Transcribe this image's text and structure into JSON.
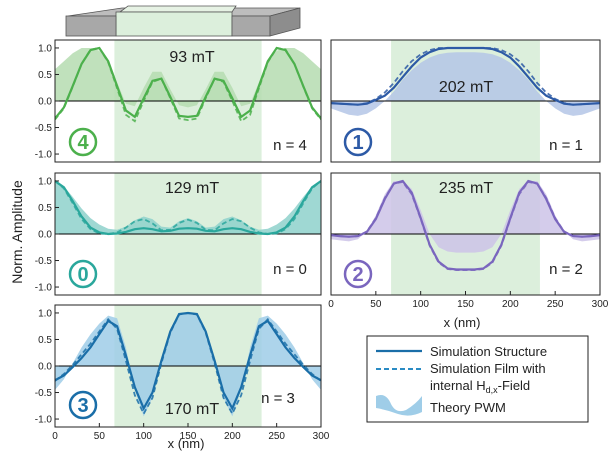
{
  "figure": {
    "ylabel": "Norm. Amplitude",
    "xlabel": "x (nm)",
    "structure_fill": "#dcefdc"
  },
  "legend": {
    "items": [
      {
        "label": "Simulation Structure",
        "style": "solid"
      },
      {
        "label": "Simulation Film with",
        "style": "dashed"
      },
      {
        "label": "internal H",
        "sub": "d,x",
        "suffix": "-Field",
        "style": "none"
      },
      {
        "label": "Theory PWM",
        "style": "wave"
      }
    ]
  },
  "chart_data": [
    {
      "type": "line",
      "mode_badge": "4",
      "field_label": "93 mT",
      "n_label": "n = 4",
      "color": "#4cb04c",
      "fill_color": "#b5dcb0",
      "xlim": [
        0,
        300
      ],
      "ylim": [
        -1.15,
        1.15
      ],
      "yticks": [
        1.0,
        0.5,
        0.0,
        -0.5,
        -1.0
      ],
      "ytick_labels": [
        "1.0",
        "0.5",
        "0.0",
        "-0.5",
        "-1.0"
      ],
      "xticks": [],
      "x": [
        0,
        10,
        20,
        30,
        40,
        50,
        60,
        70,
        80,
        90,
        100,
        110,
        120,
        130,
        140,
        150,
        160,
        170,
        180,
        190,
        200,
        210,
        220,
        230,
        240,
        250,
        260,
        270,
        280,
        290,
        300
      ],
      "series": [
        {
          "name": "Simulation Structure",
          "values": [
            -0.33,
            -0.12,
            0.28,
            0.7,
            0.96,
            1.0,
            0.75,
            0.28,
            -0.18,
            -0.3,
            0.05,
            0.38,
            0.42,
            0.08,
            -0.28,
            -0.3,
            -0.28,
            0.08,
            0.42,
            0.38,
            0.05,
            -0.3,
            -0.18,
            0.28,
            0.75,
            1.0,
            0.96,
            0.7,
            0.28,
            -0.12,
            -0.33
          ]
        },
        {
          "name": "Simulation Film with internal Hd,x-Field",
          "values": [
            -0.35,
            -0.14,
            0.27,
            0.7,
            0.97,
            1.0,
            0.73,
            0.24,
            -0.26,
            -0.38,
            0.0,
            0.36,
            0.42,
            0.05,
            -0.33,
            -0.36,
            -0.33,
            0.05,
            0.42,
            0.36,
            0.0,
            -0.38,
            -0.26,
            0.24,
            0.73,
            1.0,
            0.97,
            0.7,
            0.27,
            -0.14,
            -0.35
          ]
        },
        {
          "name": "Theory PWM",
          "values": [
            0.6,
            0.75,
            0.9,
            1.0,
            1.0,
            0.95,
            0.75,
            0.35,
            -0.05,
            -0.1,
            0.25,
            0.55,
            0.55,
            0.22,
            -0.08,
            -0.12,
            -0.08,
            0.22,
            0.55,
            0.55,
            0.25,
            -0.1,
            -0.05,
            0.35,
            0.75,
            0.95,
            1.0,
            1.0,
            0.9,
            0.75,
            0.6
          ]
        }
      ]
    },
    {
      "type": "line",
      "mode_badge": "0",
      "field_label": "129 mT",
      "n_label": "n = 0",
      "color": "#2aa79c",
      "fill_color": "#8ed1cb",
      "xlim": [
        0,
        300
      ],
      "ylim": [
        -1.15,
        1.15
      ],
      "yticks": [
        1.0,
        0.5,
        0.0,
        -0.5,
        -1.0
      ],
      "ytick_labels": [
        "1.0",
        "0.5",
        "0.0",
        "-0.5",
        "-1.0"
      ],
      "xticks": [],
      "x": [
        0,
        10,
        20,
        30,
        40,
        50,
        60,
        70,
        80,
        90,
        100,
        110,
        120,
        130,
        140,
        150,
        160,
        170,
        180,
        190,
        200,
        210,
        220,
        230,
        240,
        250,
        260,
        270,
        280,
        290,
        300
      ],
      "series": [
        {
          "name": "Simulation Structure",
          "values": [
            1.0,
            0.88,
            0.62,
            0.33,
            0.12,
            0.03,
            0.0,
            0.01,
            0.04,
            0.09,
            0.11,
            0.09,
            0.05,
            0.06,
            0.1,
            0.11,
            0.1,
            0.06,
            0.05,
            0.09,
            0.11,
            0.09,
            0.04,
            0.01,
            0.0,
            0.03,
            0.12,
            0.33,
            0.62,
            0.88,
            1.0
          ]
        },
        {
          "name": "Simulation Film with internal Hd,x-Field",
          "values": [
            1.0,
            0.86,
            0.58,
            0.28,
            0.09,
            0.01,
            0.0,
            0.03,
            0.12,
            0.24,
            0.28,
            0.2,
            0.07,
            0.08,
            0.21,
            0.27,
            0.21,
            0.08,
            0.07,
            0.2,
            0.28,
            0.24,
            0.12,
            0.03,
            0.0,
            0.01,
            0.09,
            0.28,
            0.58,
            0.86,
            1.0
          ]
        },
        {
          "name": "Theory PWM",
          "values": [
            1.0,
            0.9,
            0.7,
            0.48,
            0.3,
            0.18,
            0.1,
            0.08,
            0.14,
            0.26,
            0.33,
            0.28,
            0.14,
            0.12,
            0.24,
            0.3,
            0.24,
            0.12,
            0.14,
            0.28,
            0.33,
            0.26,
            0.14,
            0.08,
            0.1,
            0.18,
            0.3,
            0.48,
            0.7,
            0.9,
            1.0
          ]
        }
      ]
    },
    {
      "type": "line",
      "mode_badge": "3",
      "field_label": "170 mT",
      "n_label": "n = 3",
      "color": "#1a6ea8",
      "fill_color": "#9fcde8",
      "xlim": [
        0,
        300
      ],
      "ylim": [
        -1.15,
        1.15
      ],
      "yticks": [
        1.0,
        0.5,
        0.0,
        -0.5,
        -1.0
      ],
      "ytick_labels": [
        "1.0",
        "0.5",
        "0.0",
        "-0.5",
        "-1.0"
      ],
      "xticks": [
        0,
        50,
        100,
        150,
        200,
        250,
        300
      ],
      "x": [
        0,
        10,
        20,
        30,
        40,
        50,
        60,
        70,
        80,
        90,
        100,
        110,
        120,
        130,
        140,
        150,
        160,
        170,
        180,
        190,
        200,
        210,
        220,
        230,
        240,
        250,
        260,
        270,
        280,
        290,
        300
      ],
      "series": [
        {
          "name": "Simulation Structure",
          "values": [
            -0.27,
            -0.18,
            -0.02,
            0.15,
            0.35,
            0.6,
            0.85,
            0.75,
            0.2,
            -0.4,
            -0.8,
            -0.5,
            0.1,
            0.65,
            0.98,
            1.0,
            0.98,
            0.65,
            0.1,
            -0.5,
            -0.8,
            -0.4,
            0.2,
            0.75,
            0.85,
            0.6,
            0.35,
            0.15,
            -0.02,
            -0.18,
            -0.27
          ]
        },
        {
          "name": "Simulation Film with internal Hd,x-Field",
          "values": [
            -0.28,
            -0.15,
            0.02,
            0.22,
            0.42,
            0.65,
            0.88,
            0.7,
            0.1,
            -0.55,
            -0.9,
            -0.6,
            0.05,
            0.63,
            0.97,
            1.0,
            0.97,
            0.63,
            0.05,
            -0.6,
            -0.9,
            -0.55,
            0.1,
            0.7,
            0.88,
            0.65,
            0.42,
            0.22,
            0.02,
            -0.15,
            -0.28
          ]
        },
        {
          "name": "Theory PWM",
          "values": [
            -0.45,
            -0.25,
            0.05,
            0.35,
            0.6,
            0.8,
            0.95,
            0.9,
            0.35,
            -0.45,
            -0.95,
            -0.6,
            0.15,
            0.7,
            1.0,
            1.0,
            1.0,
            0.7,
            0.15,
            -0.6,
            -0.95,
            -0.45,
            0.35,
            0.9,
            0.95,
            0.8,
            0.6,
            0.35,
            0.05,
            -0.25,
            -0.45
          ]
        }
      ]
    },
    {
      "type": "line",
      "mode_badge": "1",
      "field_label": "202 mT",
      "n_label": "n = 1",
      "color": "#2d5aa6",
      "fill_color": "#b4c5e6",
      "xlim": [
        0,
        300
      ],
      "ylim": [
        -1.15,
        1.15
      ],
      "yticks": [],
      "ytick_labels": [],
      "xticks": [],
      "x": [
        0,
        10,
        20,
        30,
        40,
        50,
        60,
        70,
        80,
        90,
        100,
        110,
        120,
        130,
        140,
        150,
        160,
        170,
        180,
        190,
        200,
        210,
        220,
        230,
        240,
        250,
        260,
        270,
        280,
        290,
        300
      ],
      "series": [
        {
          "name": "Simulation Structure",
          "values": [
            -0.04,
            -0.05,
            -0.06,
            -0.07,
            -0.05,
            0.02,
            0.1,
            0.25,
            0.45,
            0.65,
            0.82,
            0.92,
            0.98,
            1.0,
            1.0,
            1.0,
            1.0,
            1.0,
            0.98,
            0.92,
            0.82,
            0.65,
            0.45,
            0.25,
            0.1,
            0.02,
            -0.05,
            -0.07,
            -0.06,
            -0.05,
            -0.04
          ]
        },
        {
          "name": "Simulation Film with internal Hd,x-Field",
          "values": [
            -0.04,
            -0.05,
            -0.06,
            -0.07,
            -0.04,
            0.04,
            0.16,
            0.34,
            0.56,
            0.75,
            0.88,
            0.96,
            1.0,
            1.0,
            1.0,
            1.0,
            1.0,
            1.0,
            1.0,
            0.96,
            0.88,
            0.75,
            0.56,
            0.34,
            0.16,
            0.04,
            -0.04,
            -0.07,
            -0.06,
            -0.05,
            -0.04
          ]
        },
        {
          "name": "Theory PWM",
          "values": [
            -0.14,
            -0.2,
            -0.26,
            -0.28,
            -0.24,
            -0.14,
            0.0,
            0.18,
            0.4,
            0.58,
            0.72,
            0.82,
            0.88,
            0.91,
            0.92,
            0.92,
            0.92,
            0.91,
            0.88,
            0.82,
            0.72,
            0.58,
            0.4,
            0.18,
            0.0,
            -0.14,
            -0.24,
            -0.28,
            -0.26,
            -0.2,
            -0.14
          ]
        }
      ]
    },
    {
      "type": "line",
      "mode_badge": "2",
      "field_label": "235 mT",
      "n_label": "n = 2",
      "color": "#7a66be",
      "fill_color": "#cdc3e8",
      "xlim": [
        0,
        300
      ],
      "ylim": [
        -1.15,
        1.15
      ],
      "yticks": [],
      "ytick_labels": [],
      "xticks": [
        0,
        50,
        100,
        150,
        200,
        250,
        300
      ],
      "x": [
        0,
        10,
        20,
        30,
        40,
        50,
        60,
        70,
        80,
        90,
        100,
        110,
        120,
        130,
        140,
        150,
        160,
        170,
        180,
        190,
        200,
        210,
        220,
        230,
        240,
        250,
        260,
        270,
        280,
        290,
        300
      ],
      "series": [
        {
          "name": "Simulation Structure",
          "values": [
            -0.02,
            -0.04,
            -0.05,
            -0.04,
            0.04,
            0.28,
            0.66,
            0.95,
            1.0,
            0.78,
            0.3,
            -0.2,
            -0.52,
            -0.65,
            -0.67,
            -0.67,
            -0.67,
            -0.65,
            -0.52,
            -0.2,
            0.3,
            0.78,
            1.0,
            0.95,
            0.66,
            0.28,
            0.04,
            -0.04,
            -0.05,
            -0.04,
            -0.02
          ]
        },
        {
          "name": "Simulation Film with internal Hd,x-Field",
          "values": [
            -0.02,
            -0.04,
            -0.05,
            -0.04,
            0.05,
            0.3,
            0.68,
            0.95,
            0.98,
            0.75,
            0.28,
            -0.22,
            -0.54,
            -0.66,
            -0.68,
            -0.68,
            -0.68,
            -0.66,
            -0.54,
            -0.22,
            0.28,
            0.75,
            0.98,
            0.95,
            0.68,
            0.3,
            0.05,
            -0.04,
            -0.05,
            -0.04,
            -0.02
          ]
        },
        {
          "name": "Theory PWM",
          "values": [
            -0.1,
            -0.12,
            -0.14,
            -0.1,
            0.05,
            0.35,
            0.75,
            1.0,
            1.0,
            0.85,
            0.45,
            0.0,
            -0.25,
            -0.33,
            -0.35,
            -0.35,
            -0.35,
            -0.33,
            -0.25,
            0.0,
            0.45,
            0.85,
            1.0,
            1.0,
            0.75,
            0.35,
            0.05,
            -0.1,
            -0.14,
            -0.12,
            -0.1
          ]
        }
      ]
    }
  ]
}
